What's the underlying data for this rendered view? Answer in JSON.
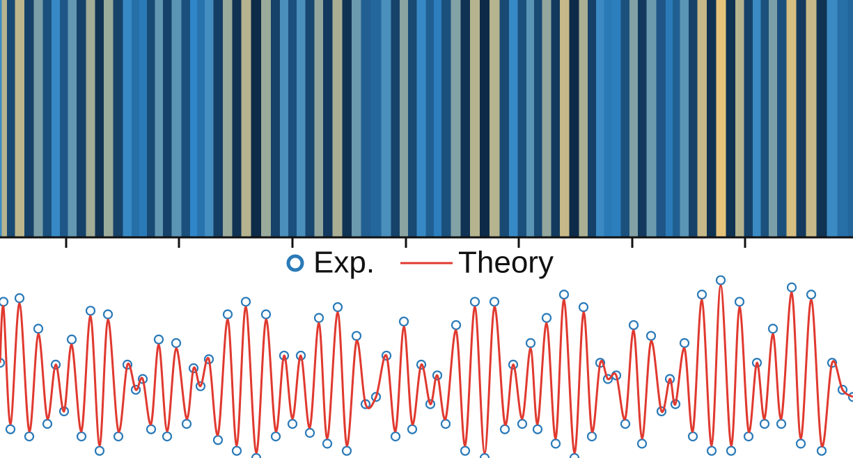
{
  "chart_data": {
    "type": "line",
    "x": [
      0,
      5,
      15,
      28,
      42,
      55,
      68,
      80,
      92,
      103,
      117,
      130,
      143,
      155,
      170,
      183,
      195,
      205,
      217,
      228,
      240,
      253,
      268,
      278,
      288,
      300,
      313,
      327,
      340,
      353,
      368,
      382,
      396,
      408,
      420,
      432,
      445,
      458,
      470,
      485,
      498,
      512,
      525,
      540,
      555,
      568,
      580,
      592,
      605,
      618,
      628,
      640,
      655,
      668,
      682,
      696,
      710,
      725,
      737,
      750,
      762,
      772,
      785,
      798,
      810,
      825,
      838,
      850,
      862,
      873,
      885,
      898,
      910,
      922,
      935,
      950,
      962,
      970,
      983,
      995,
      1008,
      1022,
      1035,
      1050,
      1062,
      1075,
      1087,
      1098,
      1110,
      1122,
      1137,
      1150,
      1165,
      1180,
      1195,
      1210,
      1225
    ],
    "series": [
      {
        "name": "Exp.",
        "color": "#2a7ab8",
        "marker": "circle",
        "values": [
          0.53,
          0.87,
          0.16,
          0.89,
          0.12,
          0.72,
          0.19,
          0.52,
          0.26,
          0.66,
          0.12,
          0.82,
          0.04,
          0.8,
          0.12,
          0.52,
          0.38,
          0.44,
          0.16,
          0.66,
          0.12,
          0.64,
          0.19,
          0.5,
          0.4,
          0.55,
          0.1,
          0.8,
          0.04,
          0.87,
          0.0,
          0.8,
          0.12,
          0.57,
          0.19,
          0.57,
          0.14,
          0.78,
          0.08,
          0.84,
          0.04,
          0.68,
          0.3,
          0.34,
          0.57,
          0.12,
          0.76,
          0.16,
          0.52,
          0.3,
          0.46,
          0.19,
          0.74,
          0.04,
          0.87,
          0.0,
          0.87,
          0.16,
          0.52,
          0.19,
          0.64,
          0.16,
          0.78,
          0.08,
          0.91,
          0.0,
          0.84,
          0.12,
          0.53,
          0.44,
          0.46,
          0.19,
          0.74,
          0.08,
          0.68,
          0.26,
          0.44,
          0.3,
          0.64,
          0.12,
          0.91,
          0.04,
          0.99,
          0.04,
          0.87,
          0.12,
          0.53,
          0.19,
          0.72,
          0.19,
          0.95,
          0.08,
          0.91,
          0.04,
          0.53,
          0.38,
          0.34
        ]
      },
      {
        "name": "Theory",
        "color": "#e0392f",
        "marker": "line",
        "values": [
          0.53,
          0.84,
          0.19,
          0.86,
          0.15,
          0.69,
          0.22,
          0.52,
          0.26,
          0.63,
          0.15,
          0.79,
          0.07,
          0.77,
          0.15,
          0.52,
          0.38,
          0.44,
          0.19,
          0.63,
          0.15,
          0.61,
          0.22,
          0.5,
          0.4,
          0.55,
          0.13,
          0.77,
          0.07,
          0.84,
          0.03,
          0.77,
          0.15,
          0.57,
          0.22,
          0.57,
          0.17,
          0.75,
          0.11,
          0.81,
          0.07,
          0.65,
          0.3,
          0.34,
          0.57,
          0.15,
          0.73,
          0.19,
          0.52,
          0.3,
          0.46,
          0.22,
          0.71,
          0.07,
          0.84,
          0.03,
          0.84,
          0.19,
          0.52,
          0.22,
          0.61,
          0.19,
          0.75,
          0.11,
          0.88,
          0.03,
          0.81,
          0.15,
          0.53,
          0.44,
          0.46,
          0.22,
          0.71,
          0.11,
          0.65,
          0.26,
          0.44,
          0.3,
          0.61,
          0.15,
          0.88,
          0.07,
          0.96,
          0.07,
          0.84,
          0.15,
          0.53,
          0.22,
          0.69,
          0.22,
          0.92,
          0.11,
          0.88,
          0.07,
          0.53,
          0.38,
          0.34
        ]
      }
    ],
    "xlim": [
      0,
      1225
    ],
    "xticks": [
      95,
      257,
      420,
      583,
      745,
      908,
      1070
    ],
    "ylim": [
      0,
      1
    ],
    "heatmap_colors": [
      "#0b2540",
      "#2f86c8",
      "#f6c874"
    ]
  }
}
